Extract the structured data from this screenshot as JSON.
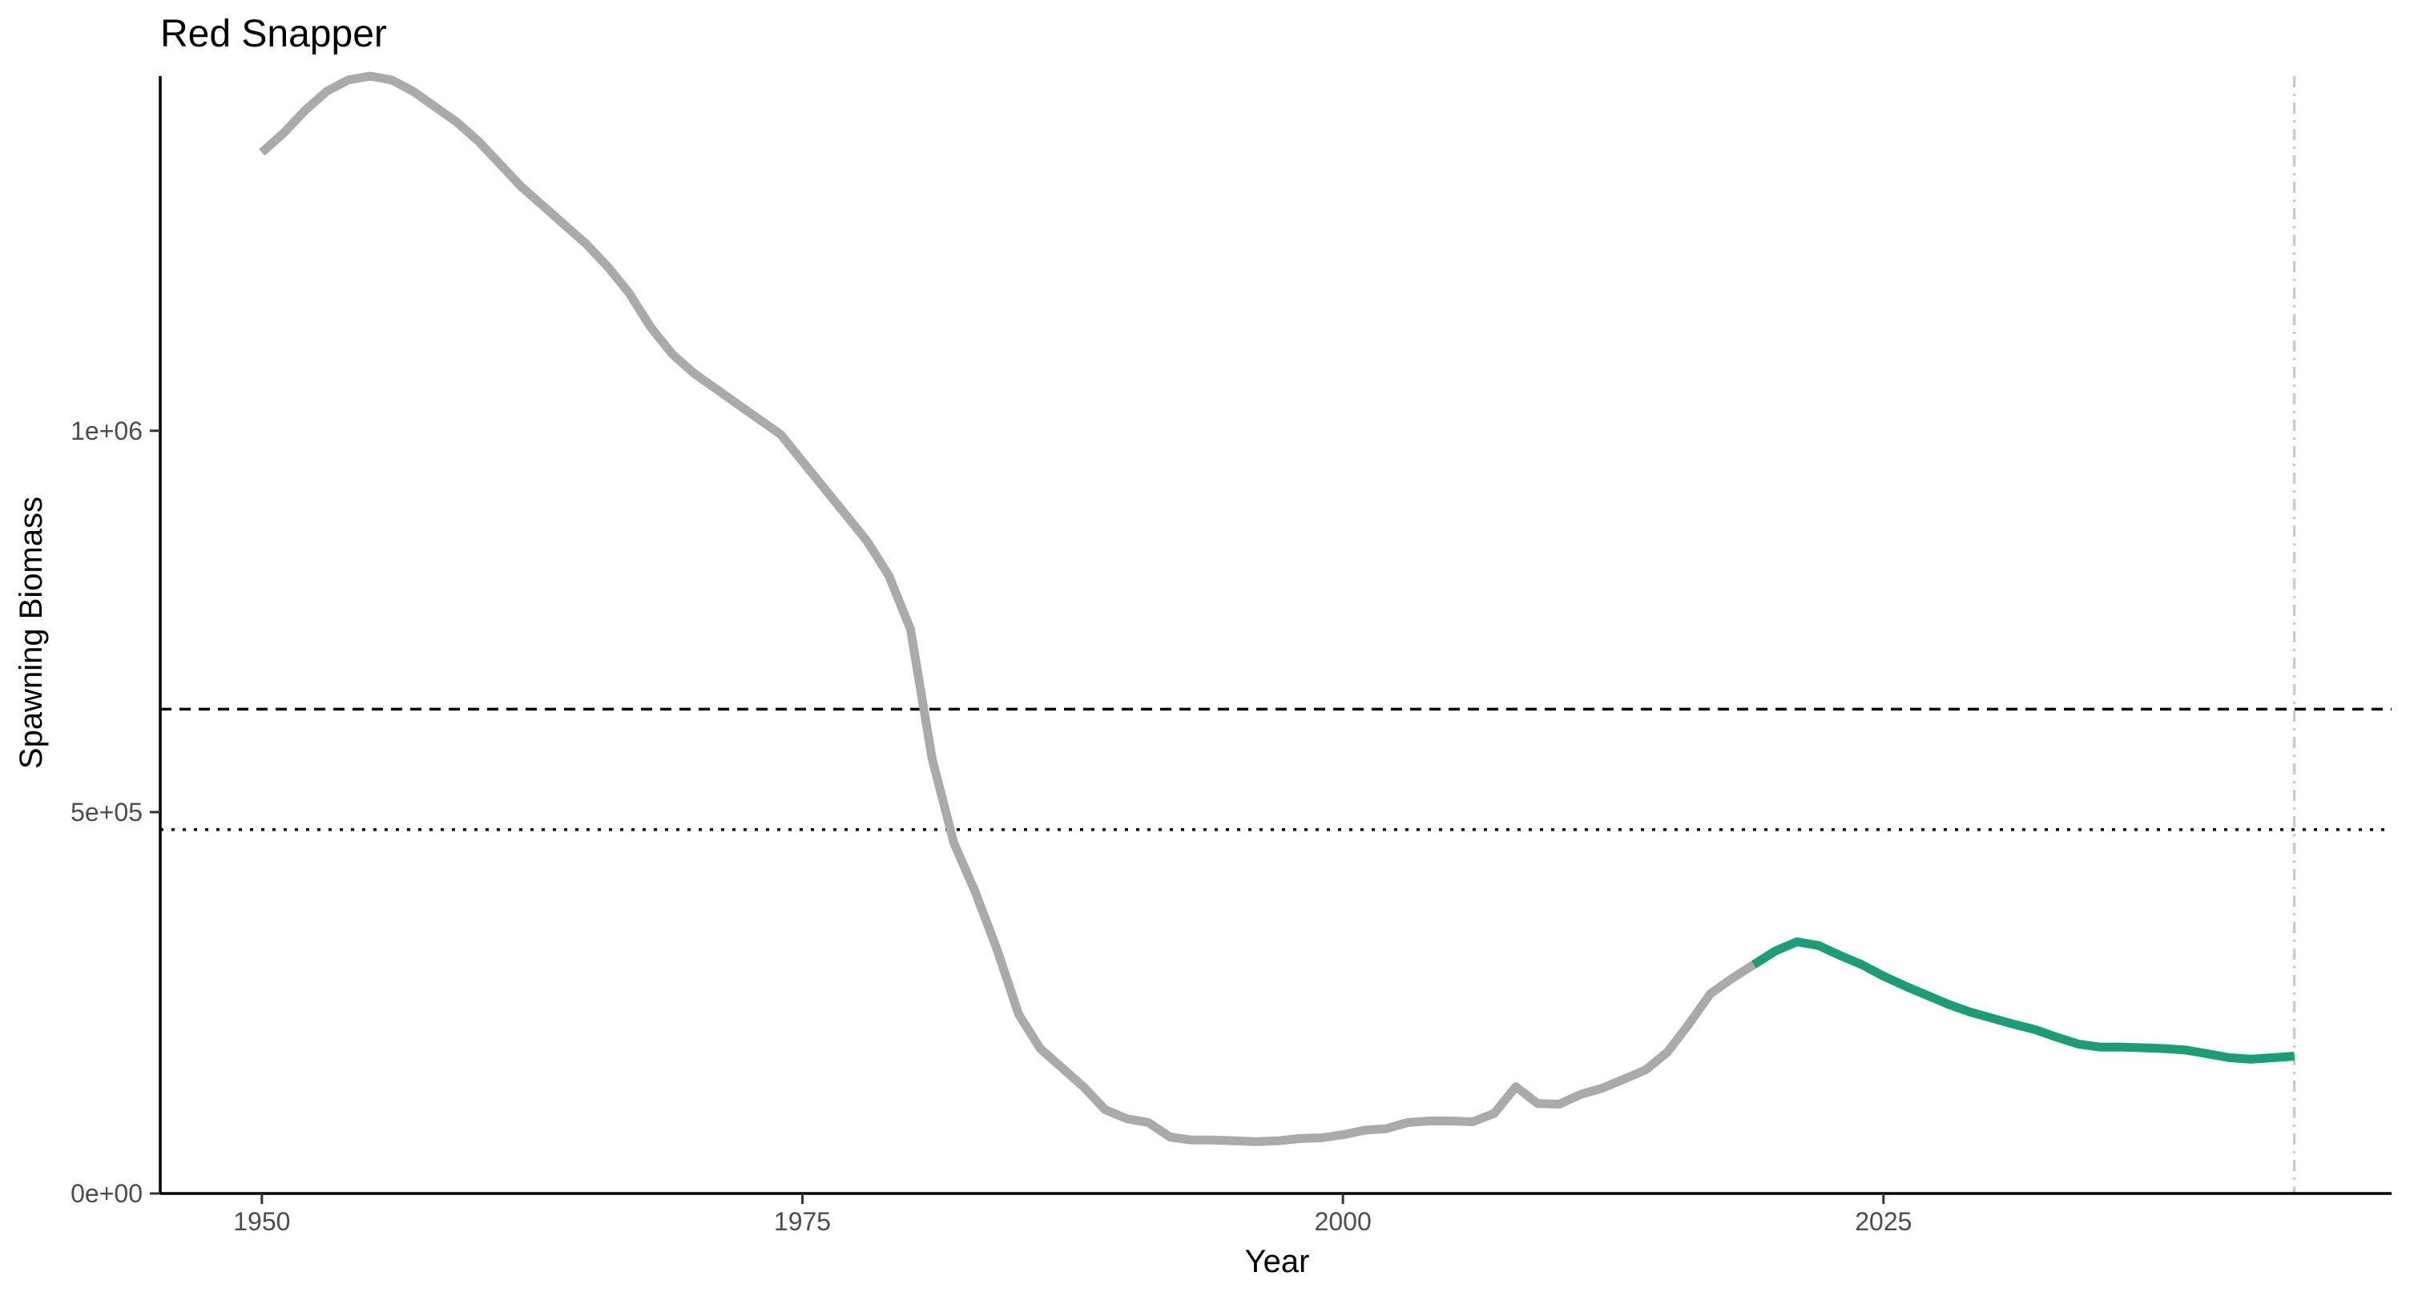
{
  "chart_data": {
    "type": "line",
    "title": "Red Snapper",
    "xlabel": "Year",
    "ylabel": "Spawning Biomass",
    "xlim": [
      1945.3,
      2048.5
    ],
    "ylim": [
      0,
      1465000
    ],
    "x_ticks": [
      1950,
      1975,
      2000,
      2025
    ],
    "x_tick_labels": [
      "1950",
      "1975",
      "2000",
      "2025"
    ],
    "y_ticks": [
      0,
      500000,
      1000000
    ],
    "y_tick_labels": [
      "0e+00",
      "5e+05",
      "1e+06"
    ],
    "grid": false,
    "legend": "none",
    "colors": {
      "historical": "#aaaaaa",
      "projection": "#1b9e77",
      "reference_dashed": "#000000",
      "reference_dotted": "#000000",
      "vertical_marker": "#cccccc"
    },
    "reference_lines": [
      {
        "style": "dashed",
        "y": 635000
      },
      {
        "style": "dotted",
        "y": 477000
      }
    ],
    "vertical_line": {
      "style": "dotdash",
      "x": 2044
    },
    "series": [
      {
        "segment": "historical",
        "x": [
          1950,
          1951,
          1952,
          1953,
          1954,
          1955,
          1956,
          1957,
          1958,
          1959,
          1960,
          1961,
          1962,
          1963,
          1964,
          1965,
          1966,
          1967,
          1968,
          1969,
          1970,
          1971,
          1972,
          1973,
          1974,
          1975,
          1976,
          1977,
          1978,
          1979,
          1980,
          1981,
          1982,
          1983,
          1984,
          1985,
          1986,
          1987,
          1988,
          1989,
          1990,
          1991,
          1992,
          1993,
          1994,
          1995,
          1996,
          1997,
          1998,
          1999,
          2000,
          2001,
          2002,
          2003,
          2004,
          2005,
          2006,
          2007,
          2008,
          2009,
          2010,
          2011,
          2012,
          2013,
          2014,
          2015,
          2016,
          2017,
          2018,
          2019
        ],
        "y": [
          1365000,
          1390000,
          1420000,
          1445000,
          1460000,
          1465000,
          1460000,
          1445000,
          1425000,
          1405000,
          1380000,
          1350000,
          1320000,
          1295000,
          1270000,
          1245000,
          1215000,
          1180000,
          1135000,
          1100000,
          1075000,
          1055000,
          1035000,
          1015000,
          995000,
          960000,
          925000,
          890000,
          855000,
          810000,
          740000,
          570000,
          460000,
          395000,
          320000,
          235000,
          190000,
          165000,
          140000,
          110000,
          98000,
          93000,
          74000,
          70000,
          70000,
          69000,
          68000,
          69000,
          72000,
          73000,
          77000,
          83000,
          85000,
          93000,
          95000,
          95000,
          94000,
          105000,
          140000,
          118000,
          117000,
          130000,
          138000,
          150000,
          162000,
          185000,
          222000,
          262000,
          282000,
          300000
        ]
      },
      {
        "segment": "projection",
        "x": [
          2019,
          2020,
          2021,
          2022,
          2023,
          2024,
          2025,
          2026,
          2027,
          2028,
          2029,
          2030,
          2031,
          2032,
          2033,
          2034,
          2035,
          2036,
          2037,
          2038,
          2039,
          2040,
          2041,
          2042,
          2043,
          2044
        ],
        "y": [
          300000,
          318000,
          330000,
          325000,
          312000,
          300000,
          285000,
          272000,
          260000,
          248000,
          238000,
          230000,
          222000,
          215000,
          205000,
          196000,
          192000,
          192000,
          191000,
          190000,
          188000,
          183000,
          178000,
          176000,
          178000,
          180000
        ]
      }
    ]
  }
}
